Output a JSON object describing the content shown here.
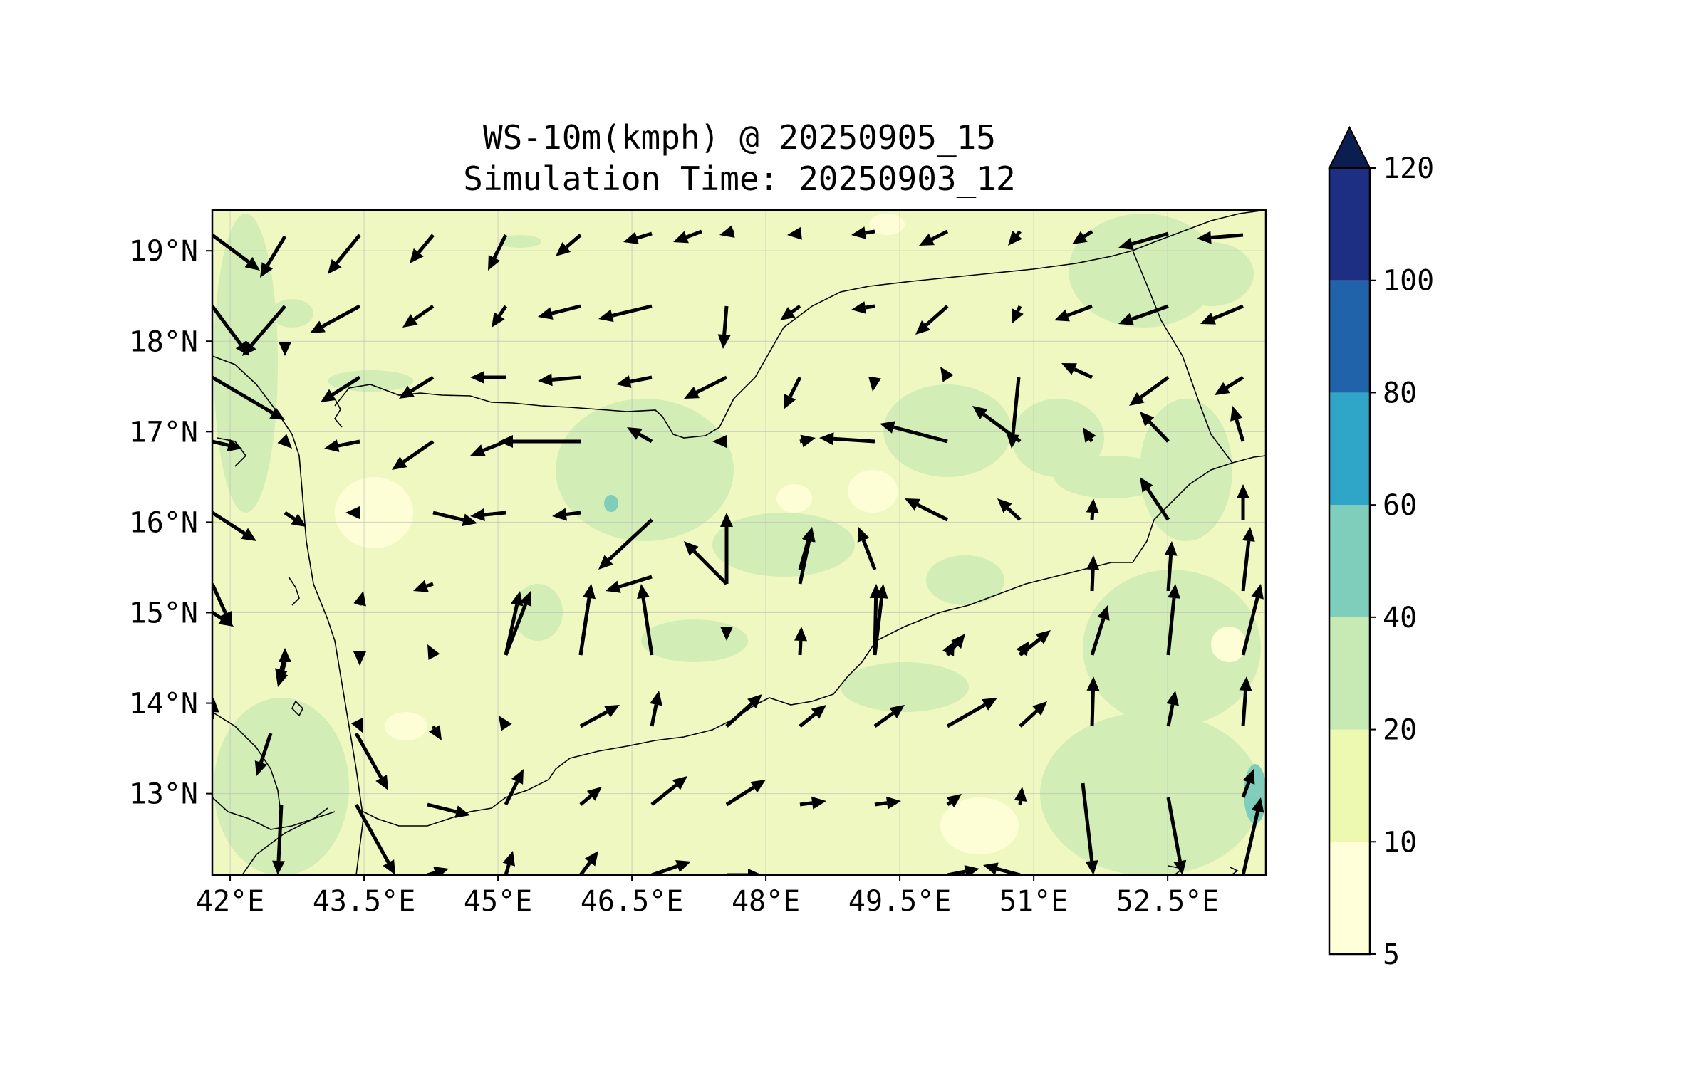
{
  "title_line1": "WS-10m(kmph) @ 20250905_15",
  "title_line2": "Simulation Time: 20250903_12",
  "map": {
    "lon_range": [
      41.8,
      53.6
    ],
    "lat_range": [
      12.1,
      19.45
    ],
    "lon_tick_values": [
      42,
      43.5,
      45,
      46.5,
      48,
      49.5,
      51,
      52.5
    ],
    "lon_tick_labels": [
      "42°E",
      "43.5°E",
      "45°E",
      "46.5°E",
      "48°E",
      "49.5°E",
      "51°E",
      "52.5°E"
    ],
    "lat_tick_values": [
      19,
      18,
      17,
      16,
      15,
      14,
      13
    ],
    "lat_tick_labels": [
      "19°N",
      "18°N",
      "17°N",
      "16°N",
      "15°N",
      "14°N",
      "13°N"
    ],
    "background_color": "#eff8c0",
    "patch_color_20_40": "#d2edb6",
    "patch_color_5_10": "#fdfed6"
  },
  "colorbar": {
    "levels": [
      "5",
      "10",
      "20",
      "40",
      "60",
      "80",
      "100",
      "120"
    ],
    "colors": [
      "#ffffd9",
      "#edf8b1",
      "#c7e9b4",
      "#7fcdbb",
      "#2fa6c7",
      "#2163ab",
      "#1c2f82"
    ],
    "extend_color": "#0b1e4f",
    "extend": "max"
  }
}
